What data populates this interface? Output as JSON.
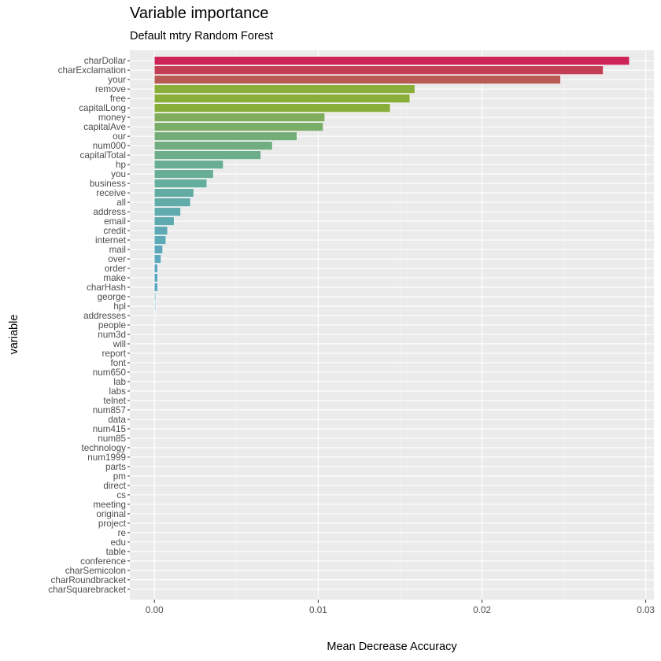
{
  "chart_data": {
    "type": "bar",
    "orientation": "horizontal",
    "title": "Variable importance",
    "subtitle": "Default mtry Random Forest",
    "xlabel": "Mean Decrease Accuracy",
    "ylabel": "variable",
    "xlim": [
      -0.0015,
      0.0305
    ],
    "xticks": [
      "0.00",
      "0.01",
      "0.02",
      "0.03"
    ],
    "grid": true,
    "legend": "none",
    "categories": [
      "charDollar",
      "charExclamation",
      "your",
      "remove",
      "free",
      "capitalLong",
      "money",
      "capitalAve",
      "our",
      "num000",
      "capitalTotal",
      "hp",
      "you",
      "business",
      "receive",
      "all",
      "address",
      "email",
      "credit",
      "internet",
      "mail",
      "over",
      "order",
      "make",
      "charHash",
      "george",
      "hpl",
      "addresses",
      "people",
      "num3d",
      "will",
      "report",
      "font",
      "num650",
      "lab",
      "labs",
      "telnet",
      "num857",
      "data",
      "num415",
      "num85",
      "technology",
      "num1999",
      "parts",
      "pm",
      "direct",
      "cs",
      "meeting",
      "original",
      "project",
      "re",
      "edu",
      "table",
      "conference",
      "charSemicolon",
      "charRoundbracket",
      "charSquarebracket"
    ],
    "values": [
      0.029,
      0.0274,
      0.0248,
      0.0159,
      0.0156,
      0.0144,
      0.0104,
      0.0103,
      0.0087,
      0.0072,
      0.0065,
      0.0042,
      0.0036,
      0.0032,
      0.0024,
      0.0022,
      0.0016,
      0.0012,
      0.0008,
      0.0007,
      0.0005,
      0.0004,
      0.0002,
      0.0002,
      0.0002,
      0.0001,
      0.0001,
      5e-05,
      3e-05,
      2e-05,
      1e-05,
      0,
      0,
      0,
      0,
      0,
      0,
      0,
      0,
      0,
      0,
      0,
      0,
      0,
      0,
      0,
      0,
      0,
      0,
      0,
      0,
      0,
      0,
      0,
      0,
      0,
      0
    ],
    "colors": [
      "#cc2456",
      "#c33f56",
      "#b85b55",
      "#8aae3a",
      "#8aae3a",
      "#8aae3a",
      "#7fad5c",
      "#7aad68",
      "#74ad78",
      "#70ad80",
      "#6cae8a",
      "#69ad92",
      "#67ad98",
      "#65ad9d",
      "#63aca4",
      "#61aba9",
      "#60abad",
      "#5faab1",
      "#5ea9b4",
      "#5da9b7",
      "#5ca8ba",
      "#5ca8bc",
      "#5ba7be",
      "#5ba7bf",
      "#5ba7c0",
      "#a9d3da",
      "#c5e3e8",
      "#d3eaee",
      "#ddeef1",
      "#e3f1f3",
      "#e8f3f5",
      "#ebebeb",
      "#ebebeb",
      "#ebebeb",
      "#ebebeb",
      "#ebebeb",
      "#ebebeb",
      "#ebebeb",
      "#ebebeb",
      "#ebebeb",
      "#ebebeb",
      "#ebebeb",
      "#ebebeb",
      "#ebebeb",
      "#ebebeb",
      "#ebebeb",
      "#ebebeb",
      "#ebebeb",
      "#ebebeb",
      "#ebebeb",
      "#ebebeb",
      "#ebebeb",
      "#ebebeb",
      "#ebebeb",
      "#ebebeb",
      "#ebebeb",
      "#ebebeb"
    ]
  }
}
